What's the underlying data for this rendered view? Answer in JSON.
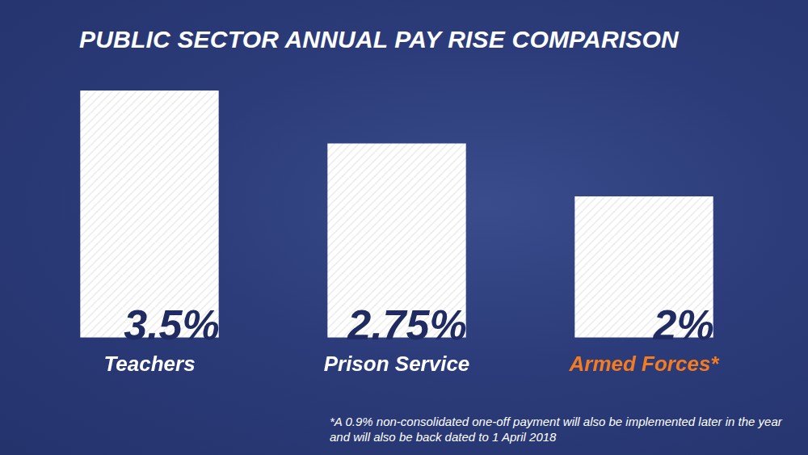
{
  "chart_data": {
    "type": "bar",
    "title": "PUBLIC SECTOR ANNUAL PAY RISE COMPARISON",
    "categories": [
      "Teachers",
      "Prison Service",
      "Armed Forces*"
    ],
    "values": [
      3.5,
      2.75,
      2
    ],
    "value_labels": [
      "3.5%",
      "2.75%",
      "2%"
    ],
    "data_labels": true,
    "color": "#ffffff",
    "ylim": [
      0,
      3.5
    ],
    "grid": false,
    "tick_labels": "x",
    "annotations": [
      "*A 0.9% non-consolidated one-off payment will also be implemented later in the year and will also be back dated to 1 April 2018"
    ]
  }
}
